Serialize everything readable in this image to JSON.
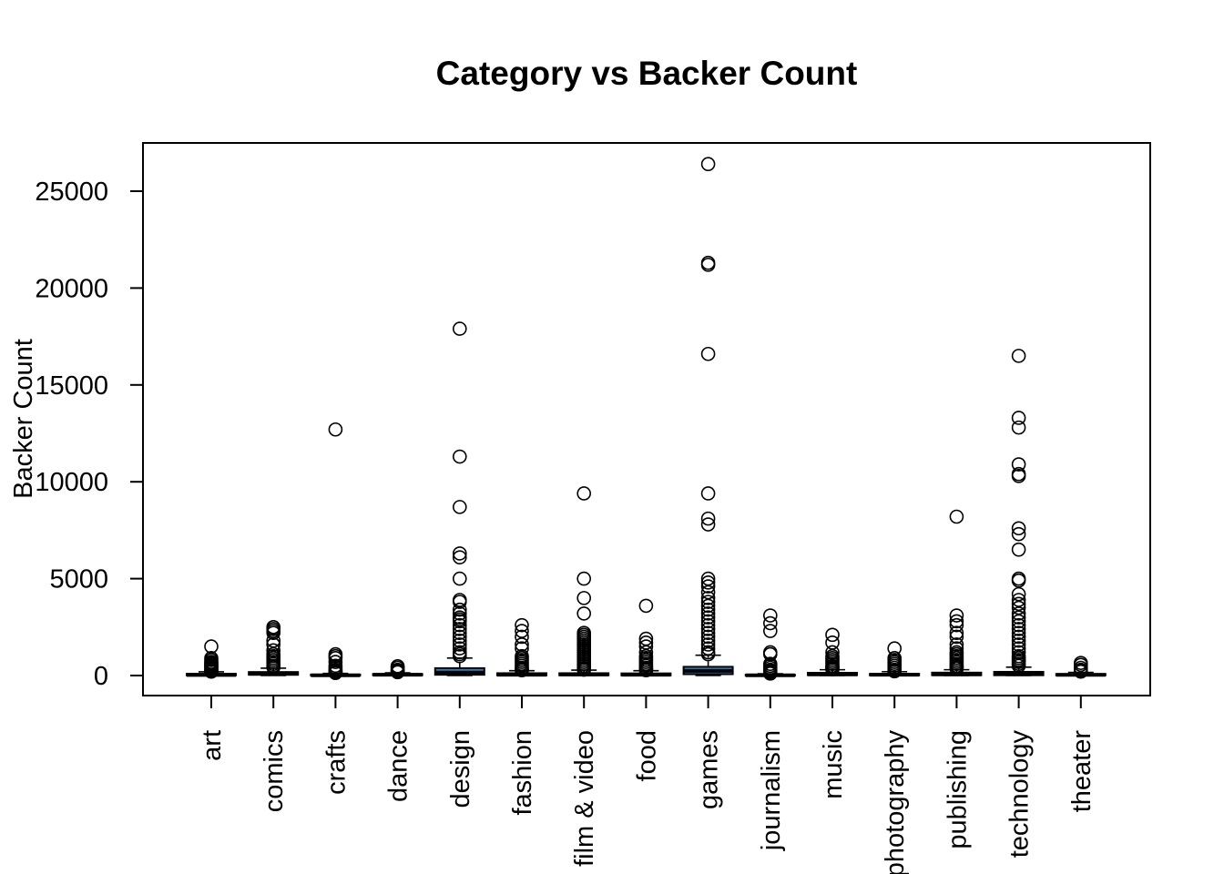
{
  "chart_data": {
    "type": "boxplot",
    "title": "Category vs Backer Count",
    "xlabel": "",
    "ylabel": "Backer Count",
    "ylim": [
      -1000,
      27500
    ],
    "yticks": [
      0,
      5000,
      10000,
      15000,
      20000,
      25000
    ],
    "grid": false,
    "box_fill_color": "#1f87c8",
    "categories": [
      "art",
      "comics",
      "crafts",
      "dance",
      "design",
      "fashion",
      "film & video",
      "food",
      "games",
      "journalism",
      "music",
      "photography",
      "publishing",
      "technology",
      "theater"
    ],
    "boxes": [
      {
        "name": "art",
        "q1": 10,
        "median": 30,
        "q3": 90,
        "whisker_low": 0,
        "whisker_high": 190,
        "outliers": [
          1500,
          900,
          800,
          700,
          650,
          600,
          550,
          500,
          450,
          400,
          350,
          300,
          250,
          220,
          200
        ]
      },
      {
        "name": "comics",
        "q1": 40,
        "median": 90,
        "q3": 180,
        "whisker_low": 0,
        "whisker_high": 380,
        "outliers": [
          2500,
          2400,
          2300,
          2200,
          1800,
          1600,
          1300,
          1100,
          1000,
          900,
          800,
          700,
          600,
          500,
          450,
          420
        ]
      },
      {
        "name": "crafts",
        "q1": 3,
        "median": 12,
        "q3": 50,
        "whisker_low": 0,
        "whisker_high": 110,
        "outliers": [
          12700,
          1100,
          1000,
          900,
          700,
          500,
          400,
          300,
          250,
          200,
          150,
          130
        ]
      },
      {
        "name": "dance",
        "q1": 15,
        "median": 40,
        "q3": 80,
        "whisker_low": 0,
        "whisker_high": 140,
        "outliers": [
          480,
          400,
          300,
          250,
          200,
          170
        ]
      },
      {
        "name": "design",
        "q1": 40,
        "median": 150,
        "q3": 380,
        "whisker_low": 0,
        "whisker_high": 900,
        "outliers": [
          17900,
          11300,
          8700,
          6300,
          6100,
          5000,
          3900,
          3800,
          3400,
          3200,
          3000,
          2900,
          2800,
          2600,
          2400,
          2200,
          2000,
          1800,
          1600,
          1400,
          1200,
          1100,
          1000
        ]
      },
      {
        "name": "fashion",
        "q1": 10,
        "median": 40,
        "q3": 120,
        "whisker_low": 0,
        "whisker_high": 250,
        "outliers": [
          2600,
          2300,
          2000,
          1600,
          1400,
          1000,
          900,
          800,
          700,
          600,
          500,
          400,
          350,
          300,
          270
        ]
      },
      {
        "name": "film & video",
        "q1": 15,
        "median": 50,
        "q3": 120,
        "whisker_low": 0,
        "whisker_high": 280,
        "outliers": [
          9400,
          5000,
          4000,
          3200,
          2200,
          2100,
          2000,
          1900,
          1800,
          1700,
          1600,
          1500,
          1400,
          1300,
          1200,
          1100,
          1000,
          900,
          800,
          700,
          600,
          500,
          400,
          350,
          300
        ]
      },
      {
        "name": "food",
        "q1": 10,
        "median": 40,
        "q3": 110,
        "whisker_low": 0,
        "whisker_high": 250,
        "outliers": [
          3600,
          1900,
          1700,
          1500,
          1200,
          1000,
          900,
          800,
          700,
          600,
          500,
          400,
          350,
          300,
          270
        ]
      },
      {
        "name": "games",
        "q1": 70,
        "median": 240,
        "q3": 450,
        "whisker_low": 0,
        "whisker_high": 1050,
        "outliers": [
          26400,
          21300,
          21200,
          16600,
          9400,
          8100,
          7800,
          5000,
          4800,
          4600,
          4300,
          4000,
          3800,
          3600,
          3400,
          3200,
          3000,
          2800,
          2600,
          2400,
          2200,
          2000,
          1800,
          1600,
          1400,
          1200,
          1100
        ]
      },
      {
        "name": "journalism",
        "q1": 2,
        "median": 10,
        "q3": 40,
        "whisker_low": 0,
        "whisker_high": 90,
        "outliers": [
          3100,
          2700,
          2300,
          1200,
          1100,
          600,
          500,
          400,
          300,
          250,
          200,
          150,
          120,
          100
        ]
      },
      {
        "name": "music",
        "q1": 20,
        "median": 60,
        "q3": 140,
        "whisker_low": 0,
        "whisker_high": 300,
        "outliers": [
          2100,
          1700,
          1200,
          1000,
          900,
          800,
          700,
          600,
          500,
          450,
          400,
          350,
          320
        ]
      },
      {
        "name": "photography",
        "q1": 10,
        "median": 40,
        "q3": 90,
        "whisker_low": 0,
        "whisker_high": 200,
        "outliers": [
          1400,
          900,
          800,
          700,
          600,
          500,
          400,
          300,
          250,
          220
        ]
      },
      {
        "name": "publishing",
        "q1": 20,
        "median": 60,
        "q3": 150,
        "whisker_low": 0,
        "whisker_high": 300,
        "outliers": [
          8200,
          3100,
          2800,
          2600,
          2200,
          2000,
          1600,
          1400,
          1200,
          1100,
          1000,
          900,
          800,
          700,
          600,
          500,
          450,
          400,
          350
        ]
      },
      {
        "name": "technology",
        "q1": 15,
        "median": 70,
        "q3": 190,
        "whisker_low": 0,
        "whisker_high": 430,
        "outliers": [
          16500,
          13300,
          12800,
          10900,
          10400,
          10300,
          7600,
          7300,
          6500,
          5000,
          4900,
          4200,
          3900,
          3700,
          3500,
          3200,
          3000,
          2800,
          2600,
          2400,
          2200,
          2000,
          1800,
          1600,
          1400,
          1200,
          1000,
          900,
          800,
          700,
          600,
          500
        ]
      },
      {
        "name": "theater",
        "q1": 10,
        "median": 35,
        "q3": 80,
        "whisker_low": 0,
        "whisker_high": 160,
        "outliers": [
          650,
          550,
          400,
          300,
          250,
          200
        ]
      }
    ]
  }
}
